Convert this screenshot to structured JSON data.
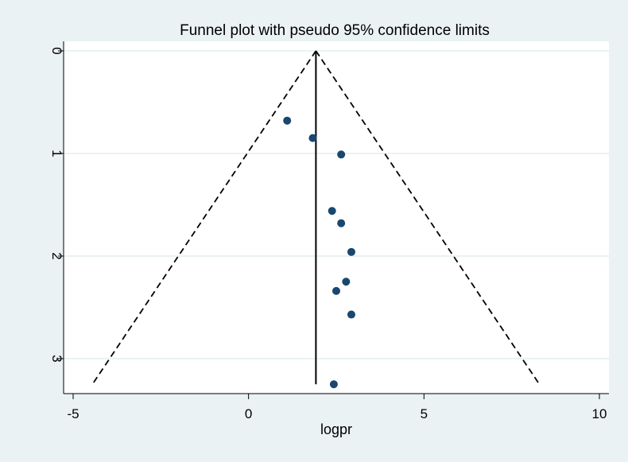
{
  "chart_data": {
    "type": "scatter",
    "title": "Funnel plot with pseudo 95% confidence limits",
    "xlabel": "logpr",
    "ylabel": "",
    "xlim": [
      -5,
      10
    ],
    "ylim": [
      0,
      3.25
    ],
    "y_reversed": true,
    "x_ticks": [
      -5,
      0,
      5,
      10
    ],
    "y_ticks": [
      0,
      1,
      2,
      3
    ],
    "grid": true,
    "legend": "none",
    "pooled_estimate": 1.92,
    "funnel": {
      "apex": [
        1.92,
        0
      ],
      "left_base": [
        -4.45,
        3.25
      ],
      "right_base": [
        8.29,
        3.25
      ]
    },
    "points": [
      {
        "x": 1.1,
        "y": 0.68
      },
      {
        "x": 1.83,
        "y": 0.85
      },
      {
        "x": 2.64,
        "y": 1.01
      },
      {
        "x": 2.38,
        "y": 1.56
      },
      {
        "x": 2.64,
        "y": 1.68
      },
      {
        "x": 2.93,
        "y": 1.96
      },
      {
        "x": 2.78,
        "y": 2.25
      },
      {
        "x": 2.5,
        "y": 2.34
      },
      {
        "x": 2.93,
        "y": 2.57
      },
      {
        "x": 2.43,
        "y": 3.25
      }
    ],
    "colors": {
      "background": "#eaf2f3",
      "plot_area": "#ffffff",
      "grid": "#dfeaec",
      "marker": "#1a476f",
      "lines": "#000000"
    }
  }
}
